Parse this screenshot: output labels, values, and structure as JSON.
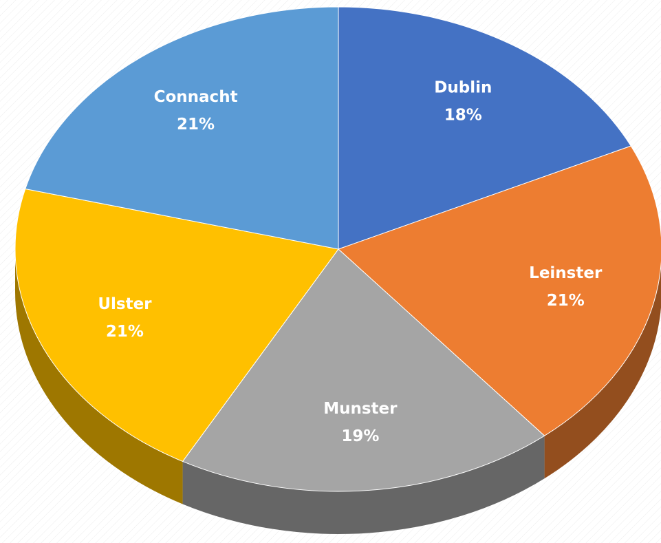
{
  "chart_data": {
    "type": "pie",
    "categories": [
      "Dublin",
      "Leinster",
      "Munster",
      "Ulster",
      "Connacht"
    ],
    "values": [
      18,
      21,
      19,
      21,
      21
    ],
    "value_labels": [
      "18%",
      "21%",
      "19%",
      "21%",
      "21%"
    ],
    "colors": [
      "#4472c4",
      "#ed7d31",
      "#a5a5a5",
      "#ffc000",
      "#5b9bd5"
    ]
  }
}
